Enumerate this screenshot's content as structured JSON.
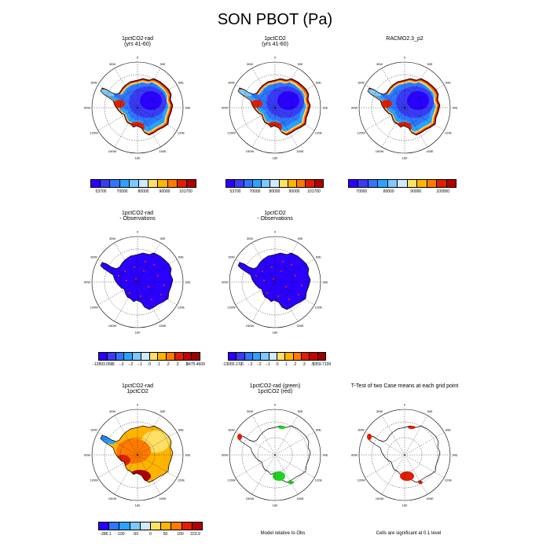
{
  "page": {
    "title": "SON PBOT (Pa)"
  },
  "palettes": {
    "field": [
      "#2a00ff",
      "#3a3cf5",
      "#2e76ff",
      "#2aa3ff",
      "#7cc8ff",
      "#cfe9ff",
      "#ffe066",
      "#ffb400",
      "#ff7a00",
      "#e01e00",
      "#b00000"
    ],
    "diff": [
      "#2a00ff",
      "#3a3cf5",
      "#2e76ff",
      "#2aa3ff",
      "#7cc8ff",
      "#cfe9ff",
      "#ffe066",
      "#ffb400",
      "#ff7a00",
      "#e01e00",
      "#c40000",
      "#9c0000"
    ],
    "bottom_diff": [
      "#2a00ff",
      "#2e76ff",
      "#2aa3ff",
      "#7cc8ff",
      "#cfe9ff",
      "#ffe066",
      "#ffb400",
      "#ff7a00",
      "#e01e00",
      "#b00000"
    ]
  },
  "panels": [
    {
      "title_lines": [
        "1pctCO2-rad",
        "(yrs 41-60)"
      ],
      "map": "field",
      "cbar": {
        "palette": "field",
        "labels": [
          "53700",
          "70000",
          "80000",
          "90000",
          "101700"
        ]
      }
    },
    {
      "title_lines": [
        "1pctCO2",
        "(yrs 41-60)"
      ],
      "map": "field",
      "cbar": {
        "palette": "field",
        "labels": [
          "53700",
          "70000",
          "80000",
          "90000",
          "101700"
        ]
      }
    },
    {
      "title_lines": [
        "RACMO2.3_p2"
      ],
      "map": "field",
      "cbar": {
        "palette": "field",
        "labels": [
          "70000",
          "80000",
          "90000",
          "100000"
        ]
      }
    },
    {
      "title_lines": [
        "1pctCO2-rad",
        "- Observations"
      ],
      "map": "diffobs",
      "cbar": {
        "palette": "diff",
        "labels": [
          "-12893.055",
          "-.5",
          "-.3",
          "-.2",
          "-.1",
          ".0",
          ".1",
          ".2",
          ".3",
          ".5",
          "3475.4609"
        ]
      }
    },
    {
      "title_lines": [
        "1pctCO2",
        "- Observations"
      ],
      "map": "diffobs",
      "cbar": {
        "palette": "diff",
        "labels": [
          "-13055.172",
          "-.5",
          "-.3",
          "-.2",
          "-.1",
          ".0",
          ".1",
          ".2",
          ".3",
          ".5",
          "3359.7109"
        ]
      }
    },
    {
      "title_lines": [
        "1pctCO2-rad",
        "1pctCO2"
      ],
      "map": "casediff",
      "cbar": {
        "palette": "bottom_diff",
        "labels": [
          "-286.1",
          "-100",
          "-50",
          "0",
          "50",
          "100",
          "223.9"
        ]
      }
    },
    {
      "title_lines": [
        "1pctCO2-rad (green)",
        "1pctCO2 (red)"
      ],
      "map": "relobs",
      "note": "Model relative to Obs"
    },
    {
      "title_lines": [
        "T-Test of two Case means at each grid point"
      ],
      "map": "ttest",
      "note": "Cells are significant at 0.1 level"
    }
  ],
  "map_labels": {
    "top": "0",
    "bottom": "180",
    "left": "90W",
    "right": "90E",
    "ul": "30W",
    "ur": "30E",
    "ul2": "60W",
    "ur2": "60E",
    "ll2": "120W",
    "lr2": "120E",
    "ll": "150W",
    "lr": "150E"
  }
}
